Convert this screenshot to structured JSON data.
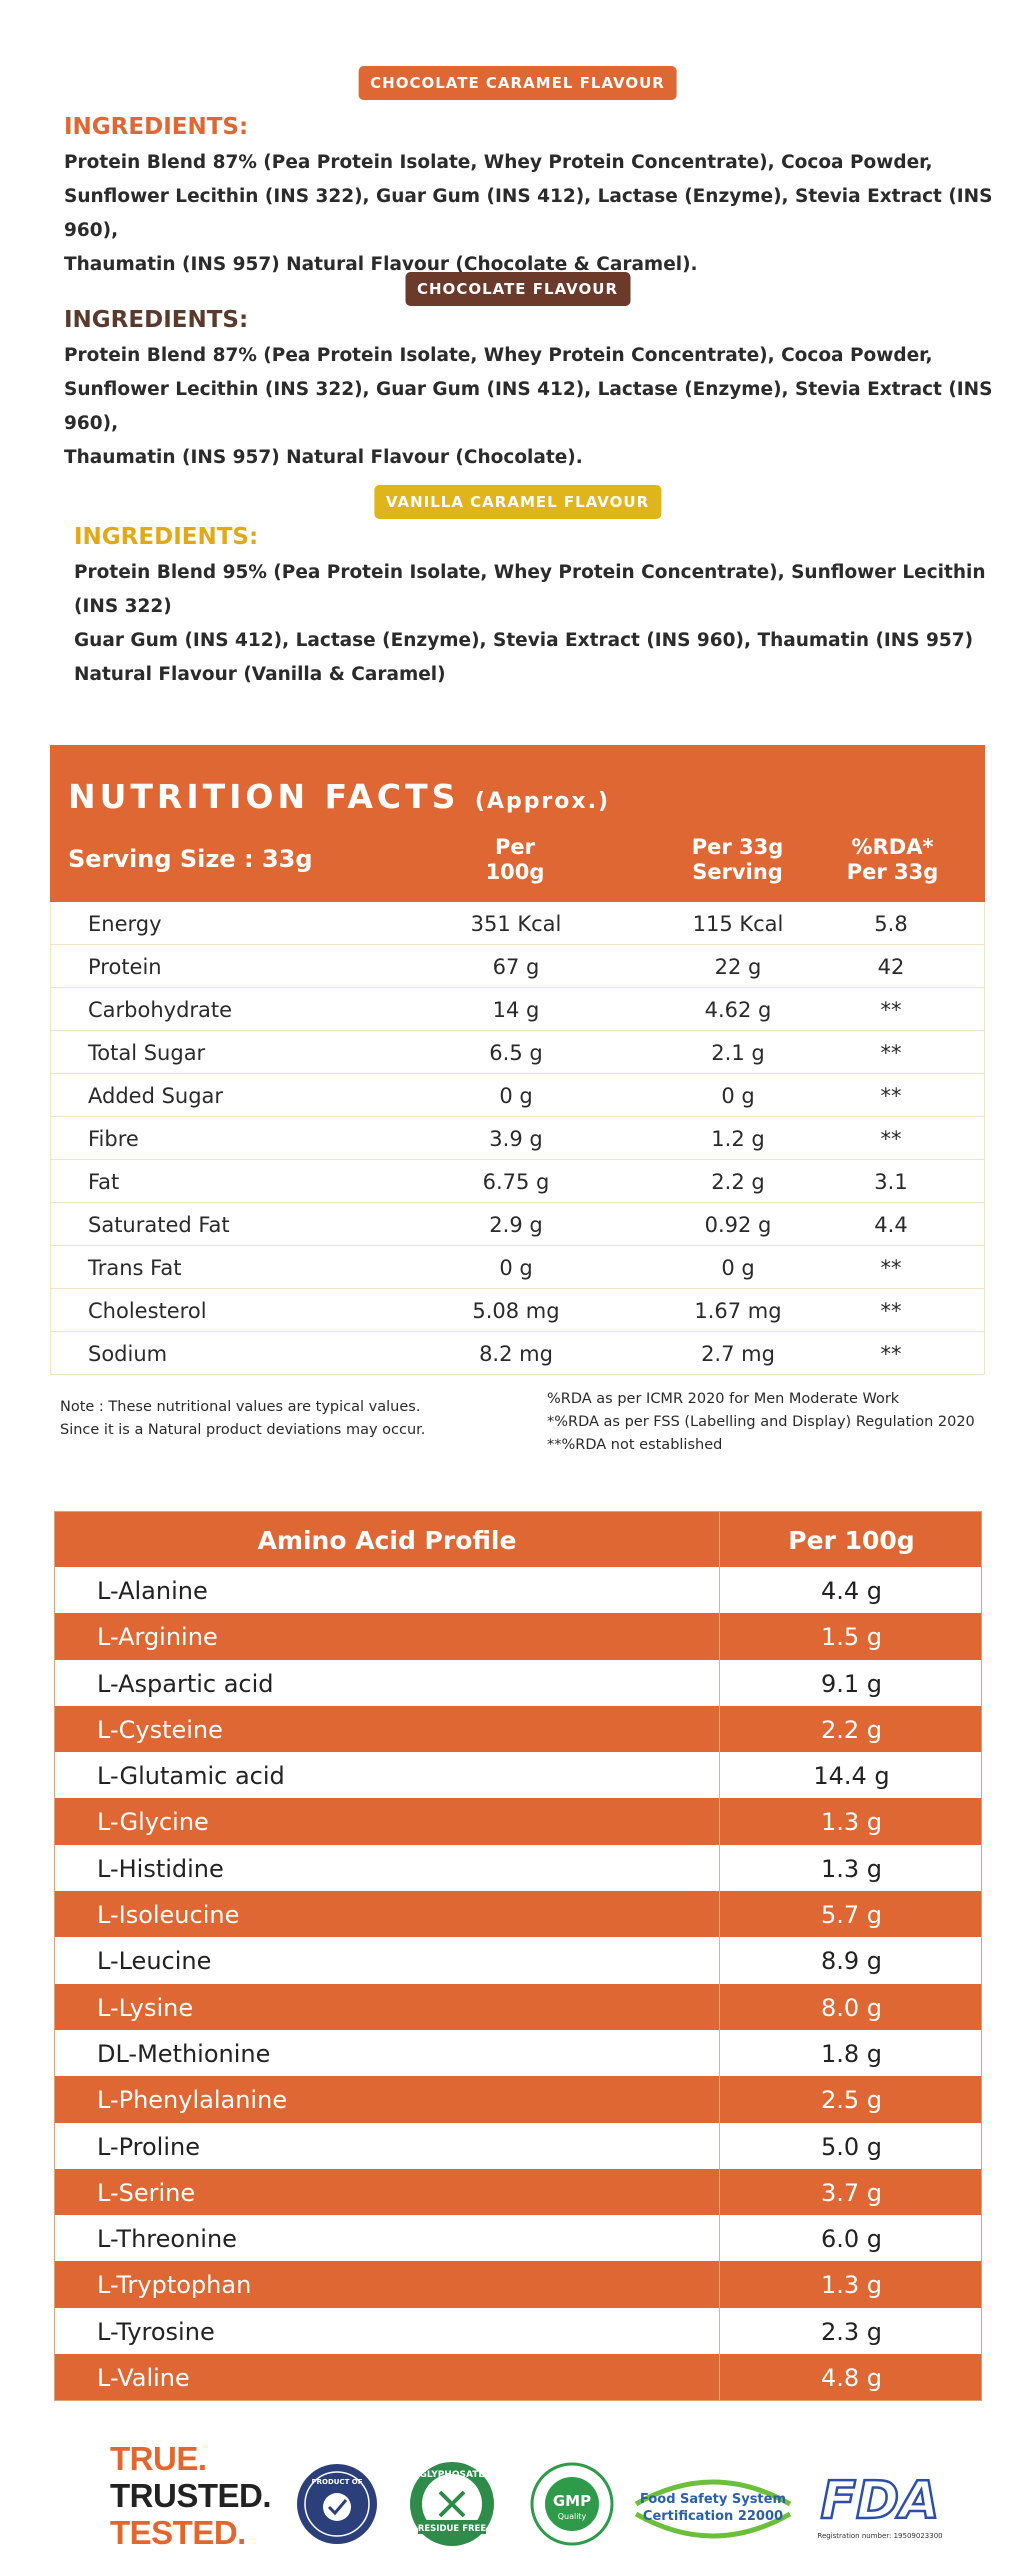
{
  "flavours": [
    {
      "badge": "CHOCOLATE CARAMEL FLAVOUR",
      "badge_color": "#de6733",
      "heading": "INGREDIENTS:",
      "heading_color": "#de6733",
      "lines": [
        "Protein Blend 87% (Pea Protein Isolate, Whey Protein Concentrate), Cocoa Powder,",
        "Sunflower Lecithin (INS 322), Guar Gum (INS 412), Lactase (Enzyme), Stevia Extract (INS 960),",
        "Thaumatin (INS 957) Natural Flavour (Chocolate & Caramel)."
      ]
    },
    {
      "badge": "CHOCOLATE FLAVOUR",
      "badge_color": "#6b3a2a",
      "heading": "INGREDIENTS:",
      "heading_color": "#5a3a2c",
      "lines": [
        "Protein Blend 87% (Pea Protein Isolate, Whey Protein Concentrate), Cocoa Powder,",
        "Sunflower Lecithin (INS 322), Guar Gum (INS 412), Lactase (Enzyme), Stevia Extract (INS 960),",
        "Thaumatin (INS 957) Natural Flavour (Chocolate)."
      ]
    },
    {
      "badge": "VANILLA CARAMEL FLAVOUR",
      "badge_color": "#e0b51b",
      "heading": "INGREDIENTS:",
      "heading_color": "#e0a919",
      "lines": [
        "Protein Blend 95% (Pea Protein Isolate, Whey Protein Concentrate), Sunflower Lecithin (INS 322)",
        "Guar Gum (INS 412), Lactase (Enzyme), Stevia Extract (INS 960), Thaumatin (INS 957)",
        "Natural Flavour (Vanilla & Caramel)"
      ]
    }
  ],
  "nutrition": {
    "title": "NUTRITION FACTS",
    "title_suffix": "(Approx.)",
    "serving": "Serving Size : 33g",
    "col1": [
      "Per",
      "100g"
    ],
    "col2": [
      "Per 33g",
      "Serving"
    ],
    "col3": [
      "%RDA*",
      "Per 33g"
    ],
    "rows": [
      {
        "name": "Energy",
        "per100": "351 Kcal",
        "per33": "115 Kcal",
        "rda": "5.8"
      },
      {
        "name": "Protein",
        "per100": "67 g",
        "per33": "22 g",
        "rda": "42"
      },
      {
        "name": "Carbohydrate",
        "per100": "14 g",
        "per33": "4.62 g",
        "rda": "**"
      },
      {
        "name": "Total Sugar",
        "per100": "6.5 g",
        "per33": "2.1 g",
        "rda": "**"
      },
      {
        "name": "Added Sugar",
        "per100": "0 g",
        "per33": "0 g",
        "rda": "**"
      },
      {
        "name": "Fibre",
        "per100": "3.9 g",
        "per33": "1.2 g",
        "rda": "**"
      },
      {
        "name": "Fat",
        "per100": "6.75 g",
        "per33": "2.2 g",
        "rda": "3.1"
      },
      {
        "name": "Saturated Fat",
        "per100": "2.9 g",
        "per33": "0.92 g",
        "rda": "4.4"
      },
      {
        "name": "Trans Fat",
        "per100": "0 g",
        "per33": "0 g",
        "rda": "**"
      },
      {
        "name": "Cholesterol",
        "per100": "5.08 mg",
        "per33": "1.67 mg",
        "rda": "**"
      },
      {
        "name": "Sodium",
        "per100": "8.2 mg",
        "per33": "2.7 mg",
        "rda": "**"
      }
    ],
    "note_left": [
      "Note : These nutritional values are typical values.",
      "Since it is a Natural product deviations may occur."
    ],
    "note_right": [
      "%RDA as per ICMR 2020 for Men Moderate Work",
      "*%RDA as per FSS (Labelling and Display) Regulation 2020",
      "**%RDA not established"
    ]
  },
  "amino": {
    "header_name": "Amino Acid Profile",
    "header_value": "Per 100g",
    "rows": [
      {
        "name": "L-Alanine",
        "value": "4.4 g"
      },
      {
        "name": "L-Arginine",
        "value": "1.5 g"
      },
      {
        "name": "L-Aspartic acid",
        "value": "9.1 g"
      },
      {
        "name": "L-Cysteine",
        "value": "2.2 g"
      },
      {
        "name": "L-Glutamic acid",
        "value": "14.4 g"
      },
      {
        "name": "L-Glycine",
        "value": "1.3 g"
      },
      {
        "name": "L-Histidine",
        "value": "1.3 g"
      },
      {
        "name": "L-Isoleucine",
        "value": "5.7 g"
      },
      {
        "name": "L-Leucine",
        "value": "8.9 g"
      },
      {
        "name": "L-Lysine",
        "value": "8.0 g"
      },
      {
        "name": "DL-Methionine",
        "value": "1.8 g"
      },
      {
        "name": "L-Phenylalanine",
        "value": "2.5 g"
      },
      {
        "name": "L-Proline",
        "value": "5.0 g"
      },
      {
        "name": "L-Serine",
        "value": "3.7 g"
      },
      {
        "name": "L-Threonine",
        "value": "6.0 g"
      },
      {
        "name": "L-Tryptophan",
        "value": "1.3 g"
      },
      {
        "name": "L-Tyrosine",
        "value": "2.3 g"
      },
      {
        "name": "L-Valine",
        "value": "4.8 g"
      }
    ]
  },
  "footer": {
    "trust_lines": [
      "TRUE.",
      "TRUSTED.",
      "TESTED."
    ],
    "logos": [
      {
        "icon": "product-of-badge-icon",
        "text": "PRODUCT OF"
      },
      {
        "icon": "glyphosate-residue-free-icon",
        "text_top": "GLYPHOSATE",
        "text_bottom": "RESIDUE FREE"
      },
      {
        "icon": "gmp-quality-icon",
        "text_top": "GMP",
        "text_bottom": "Quality"
      },
      {
        "icon": "food-safety-icon",
        "text_top": "Food Safety System",
        "text_bottom": "Certification 22000"
      },
      {
        "icon": "fda-icon",
        "text": "FDA",
        "caption": "Registration number: 19509023300"
      }
    ]
  }
}
